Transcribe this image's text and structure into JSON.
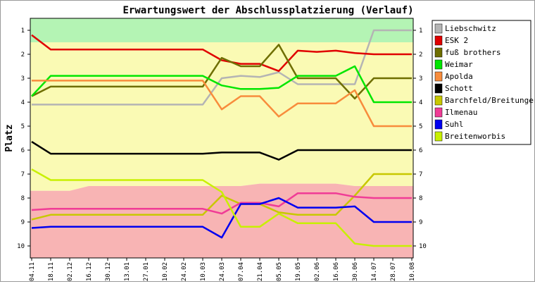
{
  "chart_data": {
    "type": "line",
    "title": "Erwartungswert der Abschlussplatzierung (Verlauf)",
    "xlabel": "",
    "ylabel": "Platz",
    "ylim": [
      10.5,
      0.5
    ],
    "y_inverted": true,
    "grid": false,
    "legend_position": "right",
    "x": [
      "04.11",
      "18.11",
      "02.12",
      "16.12",
      "30.12",
      "13.01",
      "27.01",
      "10.02",
      "24.02",
      "10.03",
      "24.03",
      "07.04",
      "21.04",
      "05.05",
      "19.05",
      "02.06",
      "16.06",
      "30.06",
      "14.07",
      "28.07",
      "10.08"
    ],
    "y_ticks": [
      1,
      2,
      3,
      4,
      5,
      6,
      7,
      8,
      9,
      10
    ],
    "zones": [
      {
        "name": "top",
        "color": "#b4f4b4",
        "values": [
          1.5,
          1.5,
          1.5,
          1.5,
          1.5,
          1.5,
          1.5,
          1.5,
          1.5,
          1.5,
          1.5,
          1.5,
          1.5,
          1.5,
          1.5,
          1.5,
          1.5,
          1.5,
          1.5,
          1.5,
          1.5
        ]
      },
      {
        "name": "middle",
        "color": "#fafab4",
        "values": [
          7.7,
          7.7,
          7.7,
          7.5,
          7.5,
          7.5,
          7.5,
          7.5,
          7.5,
          7.5,
          7.5,
          7.5,
          7.4,
          7.4,
          7.4,
          7.4,
          7.4,
          7.5,
          7.5,
          7.5,
          7.5
        ]
      },
      {
        "name": "bottom",
        "color": "#f8b4b4",
        "values": [
          10.5,
          10.5,
          10.5,
          10.5,
          10.5,
          10.5,
          10.5,
          10.5,
          10.5,
          10.5,
          10.5,
          10.5,
          10.5,
          10.5,
          10.5,
          10.5,
          10.5,
          10.5,
          10.5,
          10.5,
          10.5
        ]
      }
    ],
    "series": [
      {
        "name": "Liebschwitz",
        "color": "#b4b4b4",
        "values": [
          4.1,
          4.1,
          4.1,
          4.1,
          4.1,
          4.1,
          4.1,
          4.1,
          4.1,
          4.1,
          3.0,
          2.9,
          2.95,
          2.75,
          3.25,
          3.25,
          3.25,
          3.25,
          1.0,
          1.0,
          1.0
        ]
      },
      {
        "name": "ESK 2",
        "color": "#e00000",
        "values": [
          1.2,
          1.8,
          1.8,
          1.8,
          1.8,
          1.8,
          1.8,
          1.8,
          1.8,
          1.8,
          2.25,
          2.4,
          2.4,
          2.7,
          1.85,
          1.9,
          1.85,
          1.95,
          2.0,
          2.0,
          2.0
        ]
      },
      {
        "name": "fuß brothers",
        "color": "#6e6e00",
        "values": [
          3.75,
          3.35,
          3.35,
          3.35,
          3.35,
          3.35,
          3.35,
          3.35,
          3.35,
          3.35,
          2.15,
          2.5,
          2.5,
          1.6,
          3.0,
          3.0,
          3.0,
          3.85,
          3.0,
          3.0,
          3.0
        ]
      },
      {
        "name": "Weimar",
        "color": "#00e600",
        "values": [
          3.75,
          2.9,
          2.9,
          2.9,
          2.9,
          2.9,
          2.9,
          2.9,
          2.9,
          2.9,
          3.3,
          3.45,
          3.45,
          3.4,
          2.9,
          2.9,
          2.9,
          2.5,
          4.0,
          4.0,
          4.0
        ]
      },
      {
        "name": "Apolda",
        "color": "#f88c3c",
        "values": [
          3.1,
          3.1,
          3.1,
          3.1,
          3.1,
          3.1,
          3.1,
          3.1,
          3.1,
          3.1,
          4.3,
          3.75,
          3.75,
          4.6,
          4.05,
          4.05,
          4.05,
          3.5,
          5.0,
          5.0,
          5.0
        ]
      },
      {
        "name": "Schott",
        "color": "#000000",
        "values": [
          5.65,
          6.15,
          6.15,
          6.15,
          6.15,
          6.15,
          6.15,
          6.15,
          6.15,
          6.15,
          6.1,
          6.1,
          6.1,
          6.4,
          6.0,
          6.0,
          6.0,
          6.0,
          6.0,
          6.0,
          6.0
        ]
      },
      {
        "name": "Barchfeld/Breitungen",
        "color": "#c8c800",
        "values": [
          8.9,
          8.7,
          8.7,
          8.7,
          8.7,
          8.7,
          8.7,
          8.7,
          8.7,
          8.7,
          7.9,
          8.25,
          8.25,
          8.6,
          8.7,
          8.7,
          8.7,
          7.9,
          7.0,
          7.0,
          7.0
        ]
      },
      {
        "name": "Ilmenau",
        "color": "#f03c96",
        "values": [
          8.5,
          8.45,
          8.45,
          8.45,
          8.45,
          8.45,
          8.45,
          8.45,
          8.45,
          8.45,
          8.65,
          8.2,
          8.2,
          8.35,
          7.8,
          7.8,
          7.8,
          7.95,
          8.0,
          8.0,
          8.0
        ]
      },
      {
        "name": "Suhl",
        "color": "#0000f0",
        "values": [
          9.25,
          9.2,
          9.2,
          9.2,
          9.2,
          9.2,
          9.2,
          9.2,
          9.2,
          9.2,
          9.65,
          8.25,
          8.25,
          8.0,
          8.4,
          8.4,
          8.4,
          8.35,
          9.0,
          9.0,
          9.0
        ]
      },
      {
        "name": "Breitenworbis",
        "color": "#c8f000",
        "values": [
          6.8,
          7.25,
          7.25,
          7.25,
          7.25,
          7.25,
          7.25,
          7.25,
          7.25,
          7.25,
          7.75,
          9.2,
          9.2,
          8.65,
          9.05,
          9.05,
          9.05,
          9.9,
          10.0,
          10.0,
          10.0
        ]
      }
    ]
  }
}
